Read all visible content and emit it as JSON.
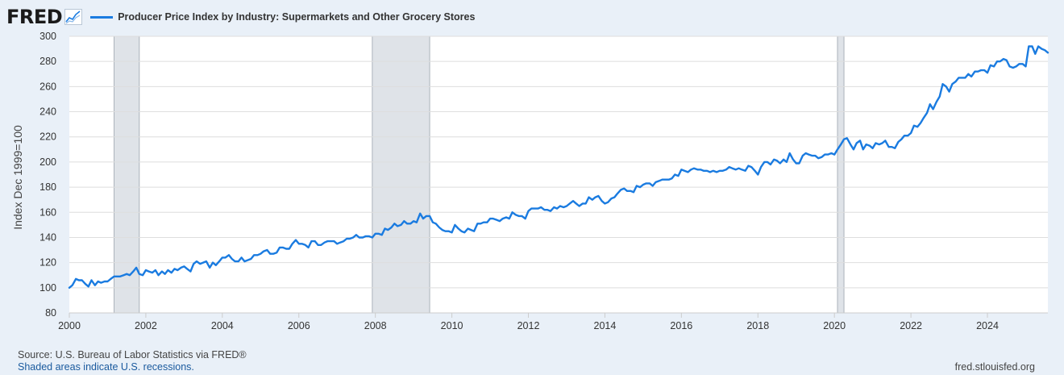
{
  "header": {
    "logo_text": "FRED",
    "logo_icon": "line-chart-icon",
    "series_title": "Producer Price Index by Industry: Supermarkets and Other Grocery Stores"
  },
  "footer": {
    "source": "U.S. Bureau of Labor Statistics via FRED®",
    "source_prefix": "Source: ",
    "recession_note": "Shaded areas indicate U.S. recessions.",
    "url": "fred.stlouisfed.org"
  },
  "colors": {
    "line": "#1a7be0",
    "recession": "#dfe3e8",
    "grid": "#dedede",
    "background": "#e9f0f8",
    "plot_background": "#ffffff"
  },
  "chart_data": {
    "type": "line",
    "title": "Producer Price Index by Industry: Supermarkets and Other Grocery Stores",
    "ylabel": "Index Dec 1999=100",
    "xlabel": "",
    "xlim": [
      2000.0,
      2025.58
    ],
    "ylim": [
      80,
      300
    ],
    "y_ticks": [
      80,
      100,
      120,
      140,
      160,
      180,
      200,
      220,
      240,
      260,
      280,
      300
    ],
    "x_ticks": [
      2000,
      2002,
      2004,
      2006,
      2008,
      2010,
      2012,
      2014,
      2016,
      2018,
      2020,
      2022,
      2024
    ],
    "x_tick_labels": [
      "2000",
      "2002",
      "2004",
      "2006",
      "2008",
      "2010",
      "2012",
      "2014",
      "2016",
      "2018",
      "2020",
      "2022",
      "2024"
    ],
    "grid": true,
    "legend": "top-left",
    "recessions": [
      [
        2001.17,
        2001.83
      ],
      [
        2007.92,
        2009.42
      ],
      [
        2020.08,
        2020.25
      ]
    ],
    "series": [
      {
        "name": "Producer Price Index by Industry: Supermarkets and Other Grocery Stores",
        "x": [
          2000.0,
          2000.08,
          2000.17,
          2000.25,
          2000.33,
          2000.42,
          2000.5,
          2000.58,
          2000.67,
          2000.75,
          2000.83,
          2000.92,
          2001.0,
          2001.08,
          2001.17,
          2001.25,
          2001.33,
          2001.42,
          2001.5,
          2001.58,
          2001.67,
          2001.75,
          2001.83,
          2001.92,
          2002.0,
          2002.08,
          2002.17,
          2002.25,
          2002.33,
          2002.42,
          2002.5,
          2002.58,
          2002.67,
          2002.75,
          2002.83,
          2002.92,
          2003.0,
          2003.08,
          2003.17,
          2003.25,
          2003.33,
          2003.42,
          2003.5,
          2003.58,
          2003.67,
          2003.75,
          2003.83,
          2003.92,
          2004.0,
          2004.08,
          2004.17,
          2004.25,
          2004.33,
          2004.42,
          2004.5,
          2004.58,
          2004.67,
          2004.75,
          2004.83,
          2004.92,
          2005.0,
          2005.08,
          2005.17,
          2005.25,
          2005.33,
          2005.42,
          2005.5,
          2005.58,
          2005.67,
          2005.75,
          2005.83,
          2005.92,
          2006.0,
          2006.08,
          2006.17,
          2006.25,
          2006.33,
          2006.42,
          2006.5,
          2006.58,
          2006.67,
          2006.75,
          2006.83,
          2006.92,
          2007.0,
          2007.08,
          2007.17,
          2007.25,
          2007.33,
          2007.42,
          2007.5,
          2007.58,
          2007.67,
          2007.75,
          2007.83,
          2007.92,
          2008.0,
          2008.08,
          2008.17,
          2008.25,
          2008.33,
          2008.42,
          2008.5,
          2008.58,
          2008.67,
          2008.75,
          2008.83,
          2008.92,
          2009.0,
          2009.08,
          2009.17,
          2009.25,
          2009.33,
          2009.42,
          2009.5,
          2009.58,
          2009.67,
          2009.75,
          2009.83,
          2009.92,
          2010.0,
          2010.08,
          2010.17,
          2010.25,
          2010.33,
          2010.42,
          2010.5,
          2010.58,
          2010.67,
          2010.75,
          2010.83,
          2010.92,
          2011.0,
          2011.08,
          2011.17,
          2011.25,
          2011.33,
          2011.42,
          2011.5,
          2011.58,
          2011.67,
          2011.75,
          2011.83,
          2011.92,
          2012.0,
          2012.08,
          2012.17,
          2012.25,
          2012.33,
          2012.42,
          2012.5,
          2012.58,
          2012.67,
          2012.75,
          2012.83,
          2012.92,
          2013.0,
          2013.08,
          2013.17,
          2013.25,
          2013.33,
          2013.42,
          2013.5,
          2013.58,
          2013.67,
          2013.75,
          2013.83,
          2013.92,
          2014.0,
          2014.08,
          2014.17,
          2014.25,
          2014.33,
          2014.42,
          2014.5,
          2014.58,
          2014.67,
          2014.75,
          2014.83,
          2014.92,
          2015.0,
          2015.08,
          2015.17,
          2015.25,
          2015.33,
          2015.42,
          2015.5,
          2015.58,
          2015.67,
          2015.75,
          2015.83,
          2015.92,
          2016.0,
          2016.08,
          2016.17,
          2016.25,
          2016.33,
          2016.42,
          2016.5,
          2016.58,
          2016.67,
          2016.75,
          2016.83,
          2016.92,
          2017.0,
          2017.08,
          2017.17,
          2017.25,
          2017.33,
          2017.42,
          2017.5,
          2017.58,
          2017.67,
          2017.75,
          2017.83,
          2017.92,
          2018.0,
          2018.08,
          2018.17,
          2018.25,
          2018.33,
          2018.42,
          2018.5,
          2018.58,
          2018.67,
          2018.75,
          2018.83,
          2018.92,
          2019.0,
          2019.08,
          2019.17,
          2019.25,
          2019.33,
          2019.42,
          2019.5,
          2019.58,
          2019.67,
          2019.75,
          2019.83,
          2019.92,
          2020.0,
          2020.08,
          2020.17,
          2020.25,
          2020.33,
          2020.42,
          2020.5,
          2020.58,
          2020.67,
          2020.75,
          2020.83,
          2020.92,
          2021.0,
          2021.08,
          2021.17,
          2021.25,
          2021.33,
          2021.42,
          2021.5,
          2021.58,
          2021.67,
          2021.75,
          2021.83,
          2021.92,
          2022.0,
          2022.08,
          2022.17,
          2022.25,
          2022.33,
          2022.42,
          2022.5,
          2022.58,
          2022.67,
          2022.75,
          2022.83,
          2022.92,
          2023.0,
          2023.08,
          2023.17,
          2023.25,
          2023.33,
          2023.42,
          2023.5,
          2023.58,
          2023.67,
          2023.75,
          2023.83,
          2023.92,
          2024.0,
          2024.08,
          2024.17,
          2024.25,
          2024.33,
          2024.42,
          2024.5,
          2024.58,
          2024.67,
          2024.75,
          2024.83,
          2024.92,
          2025.0,
          2025.08,
          2025.17,
          2025.25,
          2025.33,
          2025.42,
          2025.5,
          2025.58
        ],
        "values": [
          100,
          102,
          107,
          106,
          106,
          103,
          101,
          106,
          102,
          105,
          104,
          105,
          105,
          107,
          109,
          109,
          109,
          110,
          111,
          110,
          113,
          116,
          111,
          110,
          114,
          113,
          112,
          114,
          110,
          113,
          111,
          114,
          112,
          115,
          114,
          116,
          117,
          115,
          113,
          119,
          121,
          119,
          120,
          121,
          116,
          120,
          118,
          121,
          124,
          124,
          126,
          123,
          121,
          121,
          124,
          121,
          122,
          123,
          126,
          126,
          127,
          129,
          130,
          127,
          127,
          128,
          132,
          132,
          131,
          131,
          135,
          138,
          135,
          135,
          134,
          132,
          137,
          137,
          134,
          134,
          136,
          137,
          137,
          137,
          135,
          136,
          137,
          139,
          139,
          140,
          142,
          140,
          140,
          141,
          141,
          140,
          143,
          143,
          142,
          147,
          146,
          148,
          151,
          149,
          150,
          153,
          151,
          151,
          153,
          152,
          159,
          155,
          157,
          157,
          152,
          151,
          148,
          146,
          145,
          145,
          144,
          150,
          147,
          145,
          144,
          147,
          146,
          145,
          151,
          151,
          152,
          152,
          155,
          155,
          154,
          153,
          155,
          156,
          155,
          160,
          158,
          157,
          157,
          155,
          161,
          163,
          163,
          163,
          164,
          162,
          162,
          161,
          164,
          163,
          165,
          164,
          165,
          167,
          169,
          167,
          165,
          167,
          167,
          172,
          170,
          172,
          173,
          169,
          167,
          168,
          171,
          172,
          175,
          178,
          179,
          177,
          177,
          176,
          181,
          180,
          182,
          183,
          183,
          181,
          184,
          185,
          186,
          186,
          186,
          187,
          190,
          189,
          194,
          193,
          192,
          194,
          195,
          194,
          194,
          193,
          193,
          192,
          193,
          192,
          193,
          193,
          194,
          196,
          195,
          194,
          195,
          194,
          193,
          197,
          196,
          193,
          190,
          196,
          200,
          200,
          198,
          202,
          201,
          199,
          202,
          200,
          207,
          202,
          199,
          199,
          205,
          207,
          206,
          205,
          205,
          203,
          204,
          206,
          206,
          207,
          206,
          210,
          214,
          218,
          219,
          214,
          210,
          215,
          217,
          210,
          214,
          213,
          211,
          215,
          214,
          215,
          217,
          212,
          212,
          211,
          216,
          218,
          221,
          221,
          223,
          229,
          228,
          231,
          235,
          239,
          246,
          242,
          248,
          252,
          262,
          260,
          256,
          262,
          264,
          267,
          267,
          267,
          270,
          268,
          272,
          272,
          273,
          273,
          271,
          277,
          276,
          280,
          280,
          282,
          281,
          276,
          275,
          276,
          278,
          278,
          276,
          292,
          292,
          286,
          292,
          290,
          289,
          287
        ]
      }
    ]
  }
}
